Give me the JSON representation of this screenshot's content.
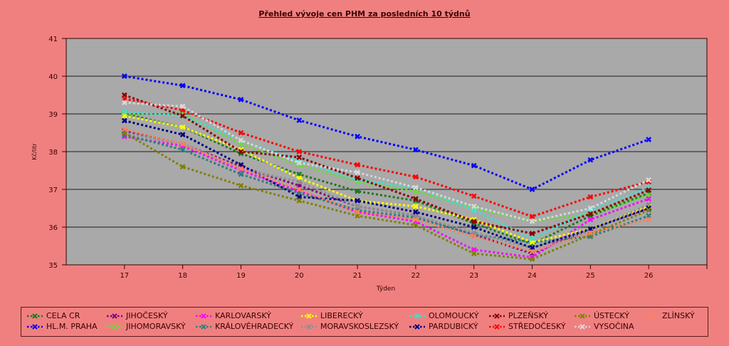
{
  "chart_data": {
    "type": "line",
    "title": "Přehled vývoje cen PHM za posledních 10 týdnů",
    "xlabel": "Týden",
    "ylabel": "Kč/litr",
    "ylim": [
      35,
      41
    ],
    "yticks": [
      "35",
      "36",
      "37",
      "38",
      "39",
      "40",
      "41"
    ],
    "grid": true,
    "legend": "bottom",
    "categories": [
      "17",
      "18",
      "19",
      "20",
      "21",
      "22",
      "23",
      "24",
      "25",
      "26"
    ],
    "series": [
      {
        "name": "CELA CR",
        "color": "#1a7a1a",
        "values": [
          39.0,
          38.65,
          37.95,
          37.4,
          36.95,
          36.7,
          36.1,
          35.55,
          36.3,
          36.9
        ]
      },
      {
        "name": "HL.M. PRAHA",
        "color": "#0000ff",
        "values": [
          40.0,
          39.75,
          39.38,
          38.83,
          38.4,
          38.05,
          37.63,
          37.0,
          37.78,
          38.32
        ]
      },
      {
        "name": "JIHOČESKÝ",
        "color": "#800080",
        "values": [
          38.55,
          38.2,
          37.6,
          37.1,
          36.55,
          36.3,
          35.8,
          35.3,
          35.95,
          36.5
        ]
      },
      {
        "name": "JIHOMORAVSKÝ",
        "color": "#66dd33",
        "values": [
          39.0,
          39.0,
          38.2,
          37.65,
          37.2,
          36.95,
          36.5,
          36.15,
          36.35,
          36.85
        ]
      },
      {
        "name": "KARLOVARSKÝ",
        "color": "#ff00ff",
        "values": [
          38.4,
          38.15,
          37.5,
          36.95,
          36.4,
          36.15,
          35.4,
          35.2,
          36.2,
          36.75
        ]
      },
      {
        "name": "KRÁLOVÉHRADECKÝ",
        "color": "#2a8080",
        "values": [
          38.45,
          38.05,
          37.4,
          36.9,
          36.45,
          36.25,
          35.8,
          35.6,
          35.75,
          36.3
        ]
      },
      {
        "name": "LIBERECKÝ",
        "color": "#ffff00",
        "values": [
          38.95,
          38.65,
          38.05,
          37.3,
          36.7,
          36.55,
          36.2,
          35.6,
          35.95,
          36.55
        ]
      },
      {
        "name": "MORAVSKOSLEZSKÝ",
        "color": "#909090",
        "values": [
          38.5,
          38.2,
          37.55,
          37.2,
          36.55,
          36.3,
          35.85,
          35.45,
          35.9,
          36.6
        ]
      },
      {
        "name": "OLOMOUCKÝ",
        "color": "#40e0d0",
        "values": [
          39.05,
          38.95,
          38.3,
          37.75,
          37.25,
          37.05,
          36.45,
          35.7,
          36.45,
          37.05
        ]
      },
      {
        "name": "PARDUBICKÝ",
        "color": "#000080",
        "values": [
          38.82,
          38.45,
          37.65,
          36.8,
          36.7,
          36.4,
          36.0,
          35.45,
          35.95,
          36.5
        ]
      },
      {
        "name": "PLZEŇSKÝ",
        "color": "#8b0000",
        "values": [
          39.5,
          38.95,
          38.0,
          37.85,
          37.3,
          36.75,
          36.15,
          35.83,
          36.35,
          36.98
        ]
      },
      {
        "name": "STŘEDOČESKÝ",
        "color": "#ff0000",
        "values": [
          39.4,
          39.1,
          38.5,
          38.0,
          37.65,
          37.33,
          36.82,
          36.28,
          36.8,
          37.2
        ]
      },
      {
        "name": "ÚSTECKÝ",
        "color": "#808000",
        "values": [
          38.5,
          37.6,
          37.1,
          36.7,
          36.3,
          36.05,
          35.3,
          35.15,
          35.8,
          36.45
        ]
      },
      {
        "name": "VYSOČINA",
        "color": "#d8d8d8",
        "values": [
          39.3,
          39.2,
          38.3,
          37.7,
          37.45,
          37.05,
          36.55,
          36.15,
          36.5,
          37.25
        ]
      },
      {
        "name": "ZLÍNSKÝ",
        "color": "#ff8060",
        "values": [
          38.6,
          38.2,
          37.55,
          37.0,
          36.4,
          36.2,
          35.75,
          35.35,
          35.85,
          36.2
        ]
      }
    ]
  }
}
